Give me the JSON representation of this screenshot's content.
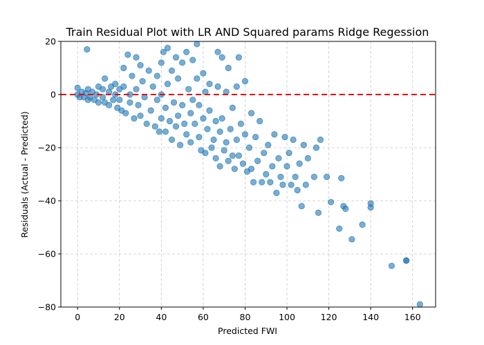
{
  "chart_data": {
    "type": "scatter",
    "title": "Train Residual Plot with LR AND Squared params Ridge Regession",
    "xlabel": "Predicted FWI",
    "ylabel": "Residuals (Actual - Predicted)",
    "xlim": [
      -8,
      171
    ],
    "ylim": [
      -80,
      20
    ],
    "x_ticks": [
      0,
      20,
      40,
      60,
      80,
      100,
      120,
      140,
      160
    ],
    "y_ticks": [
      20,
      0,
      -20,
      -40,
      -60,
      -80
    ],
    "grid": true,
    "reference_line": {
      "y": 0,
      "style": "dashed",
      "color": "#e8000b"
    },
    "series": [
      {
        "color": "#1f77b4",
        "points": [
          [
            0,
            2.5
          ],
          [
            0,
            0
          ],
          [
            1,
            -1
          ],
          [
            2,
            1
          ],
          [
            3,
            -1
          ],
          [
            4,
            0.5
          ],
          [
            5,
            2
          ],
          [
            5,
            -2
          ],
          [
            6,
            -1
          ],
          [
            7,
            1
          ],
          [
            8,
            -2
          ],
          [
            9,
            0
          ],
          [
            10,
            3
          ],
          [
            10,
            -3
          ],
          [
            12,
            -1
          ],
          [
            12,
            2
          ],
          [
            13,
            -3
          ],
          [
            15,
            1
          ],
          [
            15,
            -4
          ],
          [
            16,
            3
          ],
          [
            17,
            -2
          ],
          [
            18,
            0
          ],
          [
            18,
            4
          ],
          [
            19,
            -5
          ],
          [
            20,
            2
          ],
          [
            20,
            -2
          ],
          [
            4.5,
            17
          ],
          [
            13,
            6
          ],
          [
            21,
            -6
          ],
          [
            22,
            10
          ],
          [
            22,
            3
          ],
          [
            23,
            -7
          ],
          [
            24,
            15
          ],
          [
            25,
            0
          ],
          [
            25,
            -3
          ],
          [
            26,
            7
          ],
          [
            27,
            -9
          ],
          [
            28,
            14
          ],
          [
            28,
            2
          ],
          [
            29,
            -4
          ],
          [
            30,
            11
          ],
          [
            30,
            -8
          ],
          [
            31,
            5
          ],
          [
            32,
            -1
          ],
          [
            33,
            -11
          ],
          [
            34,
            9
          ],
          [
            35,
            -6
          ],
          [
            36,
            3
          ],
          [
            37,
            -12
          ],
          [
            38,
            7
          ],
          [
            38,
            -2
          ],
          [
            39,
            -14
          ],
          [
            40,
            12
          ],
          [
            40,
            0
          ],
          [
            40,
            -9
          ],
          [
            41,
            16
          ],
          [
            42,
            -5
          ],
          [
            42,
            -14
          ],
          [
            43,
            17.5
          ],
          [
            43,
            4
          ],
          [
            44,
            -10
          ],
          [
            45,
            9
          ],
          [
            45,
            -17
          ],
          [
            46,
            -3
          ],
          [
            47,
            14
          ],
          [
            47,
            -12
          ],
          [
            48,
            6
          ],
          [
            48,
            -8
          ],
          [
            49,
            -19
          ],
          [
            50,
            12
          ],
          [
            50,
            -4
          ],
          [
            51,
            -11
          ],
          [
            52,
            16
          ],
          [
            52,
            -15
          ],
          [
            53,
            2
          ],
          [
            54,
            -7
          ],
          [
            54,
            -18
          ],
          [
            55,
            13
          ],
          [
            55,
            -2
          ],
          [
            56,
            -11
          ],
          [
            57,
            19
          ],
          [
            57,
            6
          ],
          [
            58,
            -4
          ],
          [
            58,
            -16
          ],
          [
            59,
            -21
          ],
          [
            60,
            8
          ],
          [
            60,
            -9
          ],
          [
            61,
            1
          ],
          [
            61,
            -22
          ],
          [
            62,
            -13
          ],
          [
            63,
            4
          ],
          [
            63,
            -6
          ],
          [
            64,
            -20
          ],
          [
            65,
            -17
          ],
          [
            66,
            -10
          ],
          [
            66,
            -24
          ],
          [
            67,
            16
          ],
          [
            67,
            3
          ],
          [
            68,
            -14
          ],
          [
            68,
            -27
          ],
          [
            69,
            14
          ],
          [
            69,
            -9
          ],
          [
            70,
            -21
          ],
          [
            71,
            1
          ],
          [
            71,
            -18
          ],
          [
            72,
            -25
          ],
          [
            72,
            10
          ],
          [
            73,
            -13
          ],
          [
            74,
            -5
          ],
          [
            74,
            -23
          ],
          [
            75,
            -28
          ],
          [
            76,
            -17
          ],
          [
            76,
            3
          ],
          [
            77,
            14
          ],
          [
            77,
            -23
          ],
          [
            78,
            -11
          ],
          [
            79,
            -26
          ],
          [
            80,
            5
          ],
          [
            80,
            -15
          ],
          [
            81,
            -29
          ],
          [
            82,
            -20
          ],
          [
            83,
            -7
          ],
          [
            83,
            -28
          ],
          [
            84,
            -33
          ],
          [
            85,
            -16
          ],
          [
            86,
            -25
          ],
          [
            87,
            -10
          ],
          [
            88,
            -33
          ],
          [
            89,
            -22
          ],
          [
            90,
            -30
          ],
          [
            91,
            -19
          ],
          [
            92,
            -33
          ],
          [
            93,
            -27
          ],
          [
            94,
            -15
          ],
          [
            95,
            -37
          ],
          [
            96,
            -24
          ],
          [
            97,
            -31
          ],
          [
            98,
            -34
          ],
          [
            99,
            -16
          ],
          [
            100,
            -27
          ],
          [
            101,
            -22
          ],
          [
            102,
            -34
          ],
          [
            103,
            -17
          ],
          [
            104,
            -31
          ],
          [
            105,
            -36
          ],
          [
            106,
            -26
          ],
          [
            107,
            -42
          ],
          [
            108,
            -19
          ],
          [
            109,
            -34
          ],
          [
            110,
            -24
          ],
          [
            113,
            -31
          ],
          [
            114,
            -20
          ],
          [
            115,
            -44.5
          ],
          [
            116,
            -17
          ],
          [
            119,
            -31
          ],
          [
            121,
            -40.5
          ],
          [
            125,
            -50.5
          ],
          [
            126,
            -31.5
          ],
          [
            127,
            -42
          ],
          [
            128,
            -43
          ],
          [
            131,
            -54.5
          ],
          [
            136,
            -49
          ],
          [
            140,
            -41
          ],
          [
            140,
            -42.5
          ],
          [
            150,
            -64.5
          ],
          [
            157,
            -62.5
          ],
          [
            157,
            -62.5
          ],
          [
            163.5,
            -79
          ]
        ]
      }
    ]
  }
}
